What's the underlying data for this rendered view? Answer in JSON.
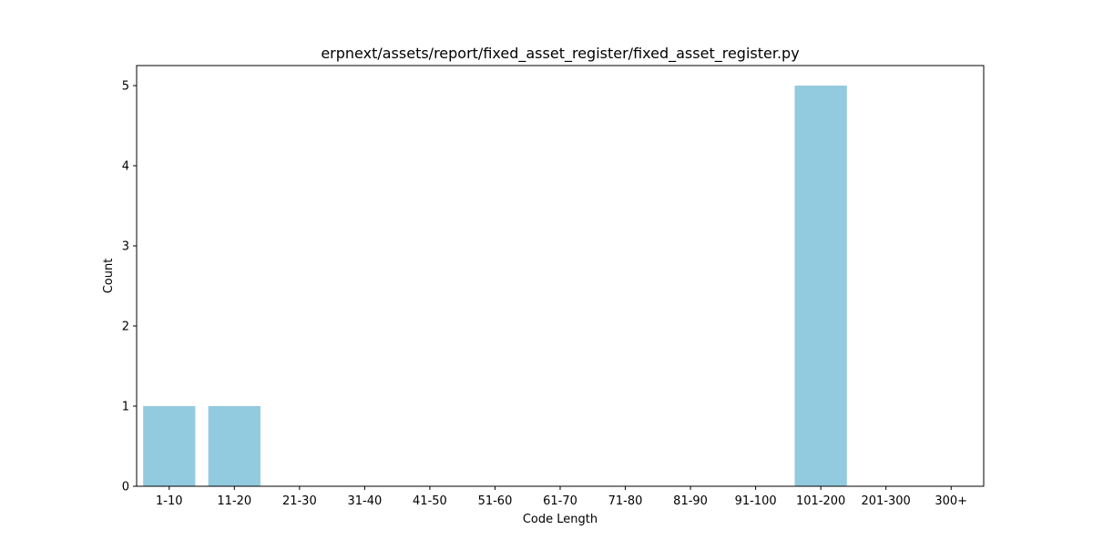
{
  "chart_data": {
    "type": "bar",
    "title": "erpnext/assets/report/fixed_asset_register/fixed_asset_register.py",
    "xlabel": "Code Length",
    "ylabel": "Count",
    "categories": [
      "1-10",
      "11-20",
      "21-30",
      "31-40",
      "41-50",
      "51-60",
      "61-70",
      "71-80",
      "81-90",
      "91-100",
      "101-200",
      "201-300",
      "300+"
    ],
    "values": [
      1,
      1,
      0,
      0,
      0,
      0,
      0,
      0,
      0,
      0,
      5,
      0,
      0
    ],
    "ylim": [
      0,
      5.25
    ],
    "yticks": [
      0,
      1,
      2,
      3,
      4,
      5
    ],
    "grid": false,
    "bar_color": "#92cadf"
  }
}
